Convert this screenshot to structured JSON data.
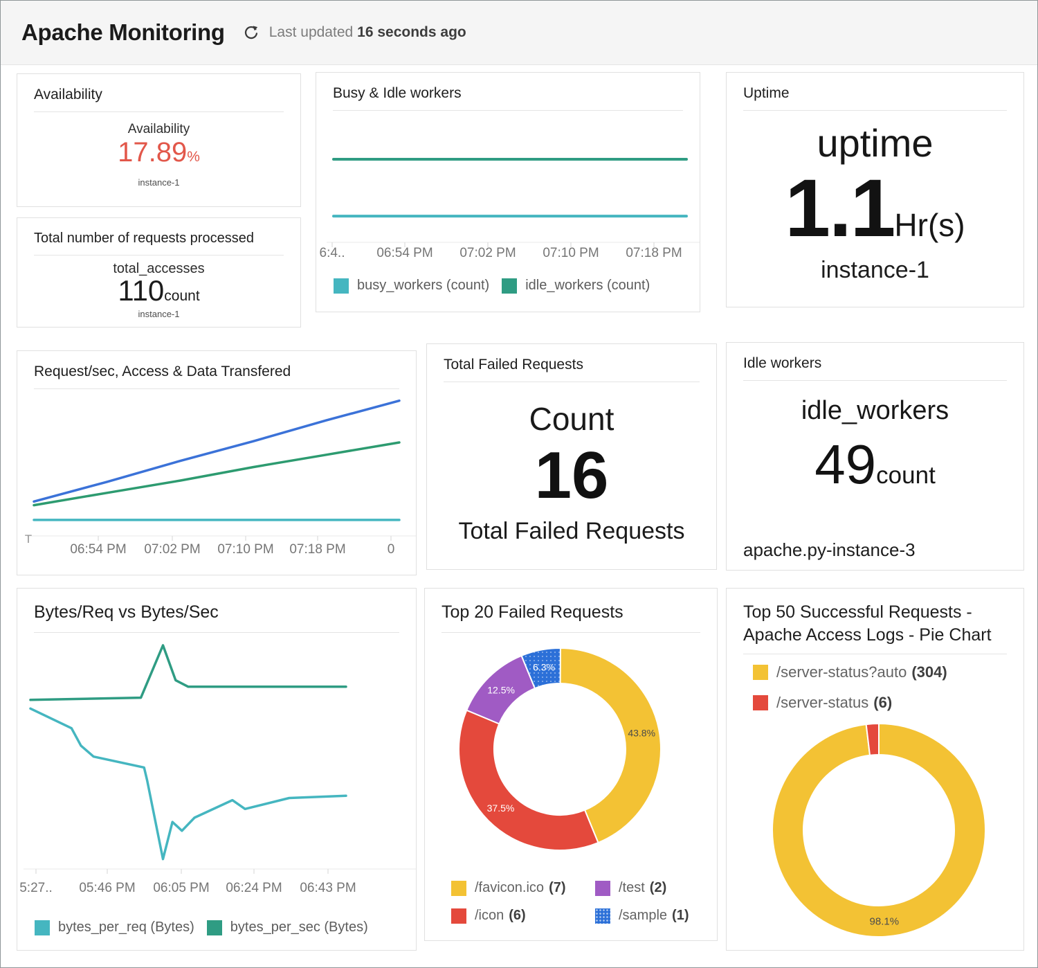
{
  "header": {
    "title": "Apache Monitoring",
    "last_updated_label": "Last updated",
    "last_updated_value": "16 seconds ago"
  },
  "widgets": {
    "availability": {
      "title": "Availability",
      "metric": "Availability",
      "value": "17.89",
      "unit": "%",
      "instance": "instance-1",
      "value_color": "#e2574a"
    },
    "total_requests": {
      "title": "Total number of requests processed",
      "metric": "total_accesses",
      "value": "110",
      "unit": "count",
      "instance": "instance-1"
    },
    "busy_idle": {
      "title": "Busy & Idle workers"
    },
    "uptime": {
      "title": "Uptime",
      "metric": "uptime",
      "value": "1.1",
      "unit": "Hr(s)",
      "instance": "instance-1"
    },
    "reqsec": {
      "title": "Request/sec, Access & Data Transfered"
    },
    "total_failed": {
      "title": "Total Failed Requests",
      "metric": "Count",
      "value": "16",
      "caption": "Total Failed Requests"
    },
    "idle_workers": {
      "title": "Idle workers",
      "metric": "idle_workers",
      "value": "49",
      "unit": "count",
      "instance": "apache.py-instance-3"
    },
    "bytes": {
      "title": "Bytes/Req vs Bytes/Sec"
    },
    "top20": {
      "title": "Top 20 Failed Requests"
    },
    "top50": {
      "title_line1": "Top 50 Successful Requests -",
      "title_line2": "Apache Access Logs - Pie Chart"
    }
  },
  "chart_data": [
    {
      "id": "busy_idle",
      "type": "line",
      "title": "Busy & Idle workers",
      "x_ticks": [
        "6:4..",
        "06:54 PM",
        "07:02 PM",
        "07:10 PM",
        "07:18 PM"
      ],
      "ylim": [
        -20,
        80
      ],
      "grid": false,
      "legend_position": "bottom",
      "series": [
        {
          "name": "busy_workers (count)",
          "color": "#45b6c0",
          "values": [
            1,
            1,
            1,
            1,
            1,
            1
          ]
        },
        {
          "name": "idle_workers (count)",
          "color": "#2f9c83",
          "values": [
            49,
            49,
            49,
            49,
            49,
            49
          ]
        }
      ]
    },
    {
      "id": "reqsec",
      "type": "line",
      "title": "Request/sec, Access & Data Transfered",
      "clipped_tick": "T",
      "x_ticks": [
        "06:54 PM",
        "07:02 PM",
        "07:10 PM",
        "07:18 PM",
        "0"
      ],
      "ylim": [
        0,
        116
      ],
      "grid": false,
      "legend_position": "none",
      "series": [
        {
          "name": "series-blue",
          "color": "#3b72d8",
          "values": [
            28,
            44,
            61,
            77,
            94,
            110
          ]
        },
        {
          "name": "series-green",
          "color": "#2d9b70",
          "values": [
            25,
            35,
            45,
            56,
            66,
            76
          ]
        },
        {
          "name": "series-teal",
          "color": "#45b6c0",
          "values": [
            13,
            13,
            13,
            13,
            13,
            13
          ]
        }
      ]
    },
    {
      "id": "bytes",
      "type": "line",
      "title": "Bytes/Req vs Bytes/Sec",
      "x_ticks": [
        "5:27..",
        "05:46 PM",
        "06:05 PM",
        "06:24 PM",
        "06:43 PM"
      ],
      "ylim": [
        0,
        100
      ],
      "y_units": "relative (no y-axis labels shown)",
      "legend_position": "bottom",
      "series": [
        {
          "name": "bytes_per_req (Bytes)",
          "color": "#45b6c0",
          "points": [
            [
              0,
              71
            ],
            [
              13,
              62
            ],
            [
              16,
              54
            ],
            [
              20,
              49
            ],
            [
              36,
              44
            ],
            [
              37,
              38
            ],
            [
              42,
              2
            ],
            [
              45,
              19
            ],
            [
              48,
              15
            ],
            [
              52,
              21
            ],
            [
              64,
              29
            ],
            [
              68,
              25
            ],
            [
              82,
              30
            ],
            [
              100,
              31
            ]
          ]
        },
        {
          "name": "bytes_per_sec (Bytes)",
          "color": "#2f9c83",
          "points": [
            [
              0,
              75
            ],
            [
              35,
              76
            ],
            [
              42,
              100
            ],
            [
              46,
              84
            ],
            [
              50,
              81
            ],
            [
              100,
              81
            ]
          ]
        }
      ]
    },
    {
      "id": "top20",
      "type": "donut",
      "title": "Top 20 Failed Requests",
      "slices": [
        {
          "label": "/favicon.ico",
          "count": 7,
          "count_label": "(7)",
          "pct": 43.8,
          "pct_label": "43.8%",
          "color": "#f3c234",
          "label_color": "#4a4a4a"
        },
        {
          "label": "/icon",
          "count": 6,
          "count_label": "(6)",
          "pct": 37.5,
          "pct_label": "37.5%",
          "color": "#e4493c",
          "label_color": "#ffffff"
        },
        {
          "label": "/test",
          "count": 2,
          "count_label": "(2)",
          "pct": 12.5,
          "pct_label": "12.5%",
          "color": "#a05bc4",
          "label_color": "#ffffff"
        },
        {
          "label": "/sample",
          "count": 1,
          "count_label": "(1)",
          "pct": 6.3,
          "pct_label": "6.3%",
          "color": "#2c70d8",
          "label_color": "#ffffff",
          "dotted": true
        }
      ]
    },
    {
      "id": "top50",
      "type": "donut",
      "title": "Top 50 Successful Requests - Apache Access Logs - Pie Chart",
      "slices": [
        {
          "label": "/server-status?auto",
          "count": 304,
          "count_label": "(304)",
          "pct": 98.1,
          "pct_label": "98.1%",
          "color": "#f3c234",
          "label_color": "#4c4c4c"
        },
        {
          "label": "/server-status",
          "count": 6,
          "count_label": "(6)",
          "pct": 1.9,
          "pct_label": "",
          "color": "#e4493c",
          "label_color": "#ffffff"
        }
      ]
    }
  ]
}
